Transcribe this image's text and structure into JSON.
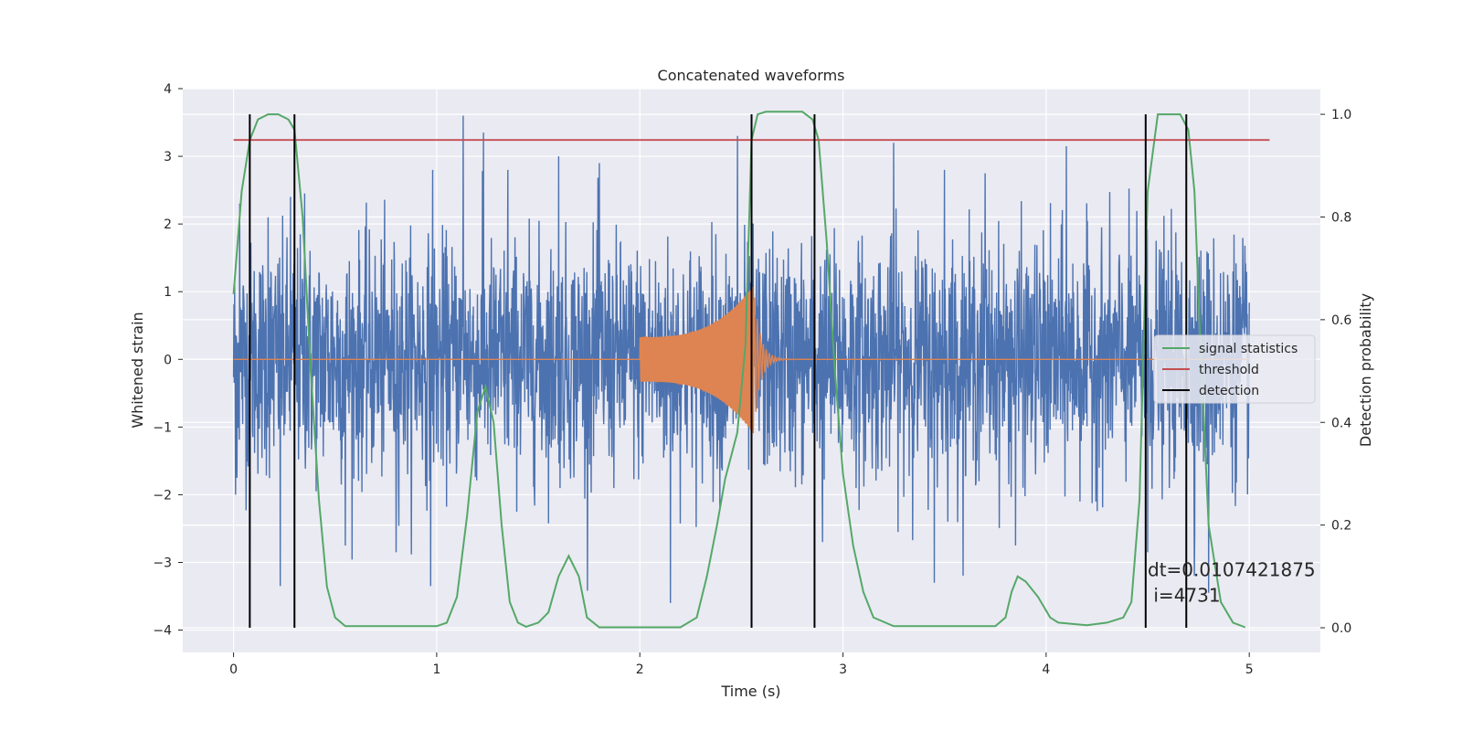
{
  "chart_data": {
    "type": "line",
    "title": "Concatenated waveforms",
    "xlabel": "Time (s)",
    "ylabel": "Whitened strain",
    "y2label": "Detection probability",
    "xlim": [
      -0.25,
      5.35
    ],
    "ylim": [
      -4.33,
      4.0
    ],
    "y2lim": [
      -0.048,
      1.05
    ],
    "xticks": [
      0,
      1,
      2,
      3,
      4,
      5
    ],
    "yticks": [
      -4,
      -3,
      -2,
      -1,
      0,
      1,
      2,
      3,
      4
    ],
    "y2ticks": [
      0.0,
      0.2,
      0.4,
      0.6,
      0.8,
      1.0
    ],
    "grid": true,
    "legend_position": "center-right",
    "colors": {
      "strain": "#4c72b0",
      "injection": "#dd8452",
      "signal_statistics": "#55a868",
      "threshold": "#c44e52",
      "detection": "#000000",
      "plot_bg": "#eaeaf2",
      "grid": "#ffffff"
    },
    "strain": {
      "x_range": [
        0.0,
        5.0
      ],
      "typical_amplitude": 1.0,
      "spikes": [
        {
          "x": 0.01,
          "y": -2.0
        },
        {
          "x": 0.03,
          "y": 2.3
        },
        {
          "x": 0.08,
          "y": -2.75
        },
        {
          "x": 0.17,
          "y": 2.1
        },
        {
          "x": 0.23,
          "y": -3.35
        },
        {
          "x": 0.28,
          "y": 2.4
        },
        {
          "x": 0.35,
          "y": 2.45
        },
        {
          "x": 0.55,
          "y": -2.75
        },
        {
          "x": 0.8,
          "y": -2.85
        },
        {
          "x": 0.97,
          "y": -3.35
        },
        {
          "x": 0.98,
          "y": 2.8
        },
        {
          "x": 1.13,
          "y": 3.6
        },
        {
          "x": 1.23,
          "y": 3.35
        },
        {
          "x": 1.35,
          "y": 2.8
        },
        {
          "x": 1.6,
          "y": 3.0
        },
        {
          "x": 1.8,
          "y": 2.9
        },
        {
          "x": 2.15,
          "y": -3.95
        },
        {
          "x": 2.48,
          "y": 3.3
        },
        {
          "x": 2.55,
          "y": -2.85
        },
        {
          "x": 2.9,
          "y": -2.7
        },
        {
          "x": 3.25,
          "y": 3.2
        },
        {
          "x": 3.45,
          "y": -3.3
        },
        {
          "x": 3.5,
          "y": 2.8
        },
        {
          "x": 3.7,
          "y": 2.75
        },
        {
          "x": 3.85,
          "y": -2.75
        },
        {
          "x": 4.1,
          "y": 3.15
        },
        {
          "x": 4.5,
          "y": -2.85
        },
        {
          "x": 4.73,
          "y": -3.2
        },
        {
          "x": 4.8,
          "y": -3.45
        },
        {
          "x": 4.92,
          "y": 1.3
        }
      ]
    },
    "injection": {
      "baseline_y": 0.0,
      "chirp_start_x": 2.0,
      "chirp_end_x": 2.56,
      "start_amplitude": 0.33,
      "peak_amplitude": 1.1,
      "ringdown_end_x": 3.0
    },
    "series": [
      {
        "name": "signal statistics",
        "x": [
          0.0,
          0.04,
          0.08,
          0.12,
          0.17,
          0.22,
          0.27,
          0.3,
          0.34,
          0.38,
          0.42,
          0.46,
          0.5,
          0.55,
          1.0,
          1.05,
          1.1,
          1.15,
          1.2,
          1.24,
          1.28,
          1.32,
          1.36,
          1.4,
          1.44,
          1.5,
          1.55,
          1.6,
          1.65,
          1.7,
          1.74,
          1.8,
          2.2,
          2.28,
          2.33,
          2.38,
          2.42,
          2.48,
          2.52,
          2.55,
          2.58,
          2.62,
          2.8,
          2.85,
          2.88,
          2.92,
          2.96,
          3.0,
          3.05,
          3.1,
          3.15,
          3.25,
          3.75,
          3.8,
          3.83,
          3.86,
          3.9,
          3.96,
          4.02,
          4.06,
          4.2,
          4.3,
          4.38,
          4.42,
          4.46,
          4.5,
          4.55,
          4.66,
          4.7,
          4.73,
          4.76,
          4.8,
          4.86,
          4.92,
          4.98
        ],
        "y": [
          0.65,
          0.85,
          0.95,
          0.99,
          1.0,
          1.0,
          0.99,
          0.97,
          0.8,
          0.5,
          0.25,
          0.08,
          0.02,
          0.003,
          0.003,
          0.01,
          0.06,
          0.22,
          0.42,
          0.47,
          0.4,
          0.2,
          0.05,
          0.01,
          0.002,
          0.01,
          0.03,
          0.1,
          0.14,
          0.1,
          0.02,
          0.001,
          0.001,
          0.02,
          0.1,
          0.2,
          0.29,
          0.38,
          0.55,
          0.95,
          1.0,
          1.005,
          1.005,
          0.99,
          0.95,
          0.75,
          0.5,
          0.3,
          0.16,
          0.07,
          0.02,
          0.003,
          0.003,
          0.02,
          0.07,
          0.1,
          0.09,
          0.06,
          0.02,
          0.01,
          0.005,
          0.01,
          0.02,
          0.05,
          0.25,
          0.85,
          1.0,
          1.0,
          0.97,
          0.85,
          0.55,
          0.2,
          0.05,
          0.01,
          0.001
        ],
        "axis": "right"
      },
      {
        "name": "threshold",
        "x": [
          0.0,
          5.1
        ],
        "y": [
          0.95,
          0.95
        ],
        "axis": "right"
      },
      {
        "name": "detection",
        "type": "vlines",
        "x": [
          0.08,
          0.3,
          2.55,
          2.86,
          4.49,
          4.69
        ],
        "ymin": 0.0,
        "ymax": 1.0,
        "axis": "right"
      }
    ],
    "annotation": {
      "line1": "dt=0.0107421875",
      "line2": " i=4731",
      "x": 4.5,
      "y": -3.2
    }
  }
}
